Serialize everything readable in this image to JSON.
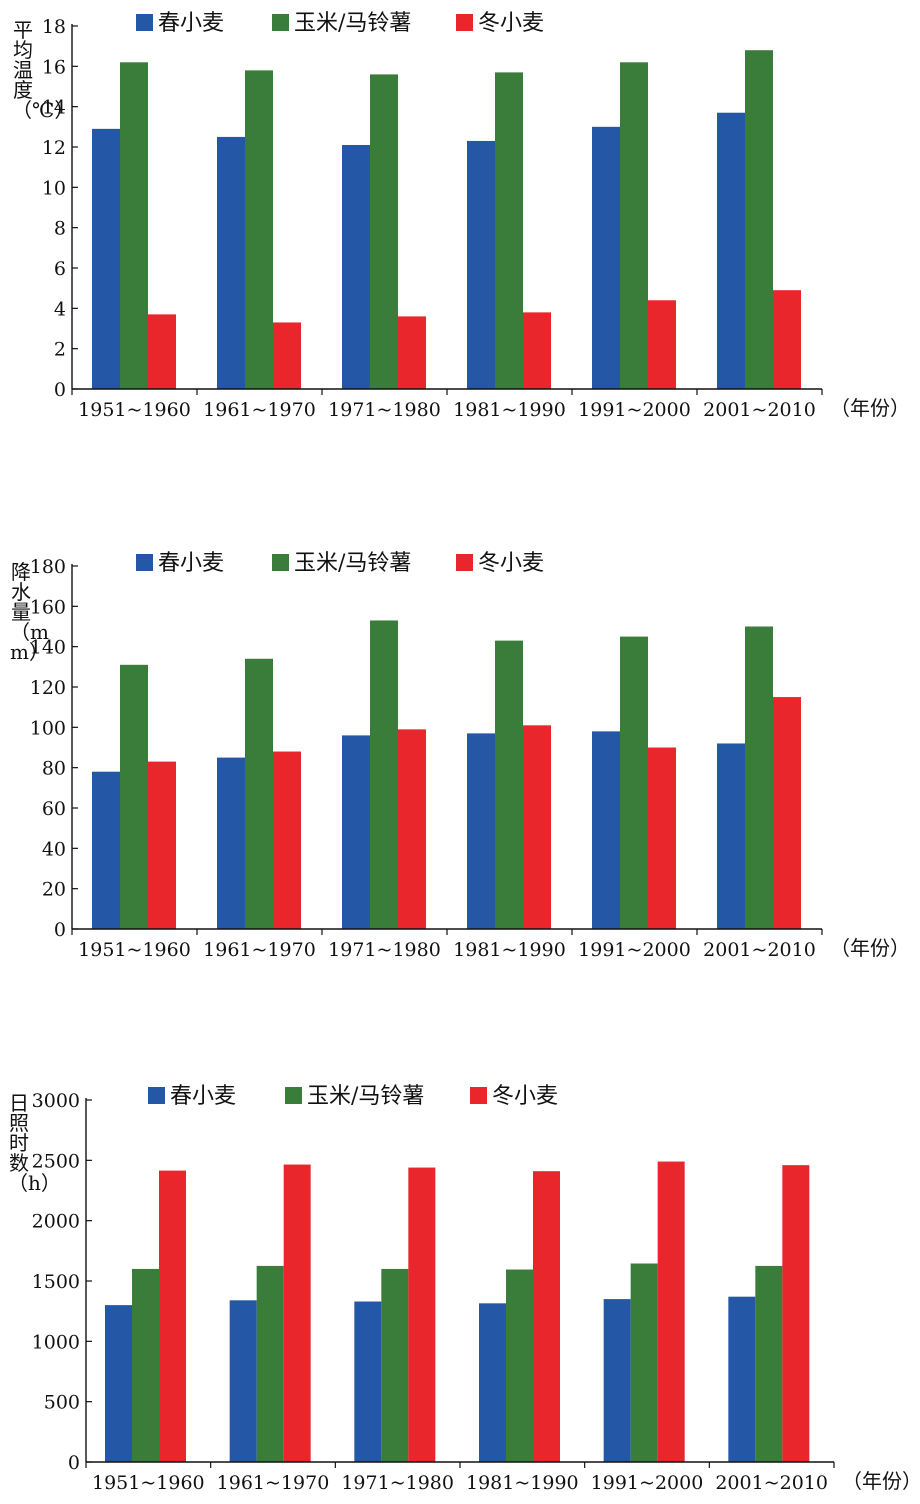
{
  "chart_data": [
    {
      "type": "bar",
      "title": "",
      "ylabel": "平均温度（℃）",
      "xlabel": "（年份）",
      "ylim": [
        0,
        18
      ],
      "yticks": [
        0,
        2,
        4,
        6,
        8,
        10,
        12,
        14,
        16,
        18
      ],
      "categories": [
        "1951~1960",
        "1961~1970",
        "1971~1980",
        "1981~1990",
        "1991~2000",
        "2001~2010"
      ],
      "series": [
        {
          "name": "春小麦",
          "color": "#2457a6",
          "values": [
            12.9,
            12.5,
            12.1,
            12.3,
            13.0,
            13.7
          ]
        },
        {
          "name": "玉米/马铃薯",
          "color": "#3a7d3b",
          "values": [
            16.2,
            15.8,
            15.6,
            15.7,
            16.2,
            16.8
          ]
        },
        {
          "name": "冬小麦",
          "color": "#e8262b",
          "values": [
            3.7,
            3.3,
            3.6,
            3.8,
            4.4,
            4.9
          ]
        }
      ]
    },
    {
      "type": "bar",
      "title": "",
      "ylabel": "降水量（mm）",
      "xlabel": "（年份）",
      "ylim": [
        0,
        180
      ],
      "yticks": [
        0,
        20,
        40,
        60,
        80,
        100,
        120,
        140,
        160,
        180
      ],
      "categories": [
        "1951~1960",
        "1961~1970",
        "1971~1980",
        "1981~1990",
        "1991~2000",
        "2001~2010"
      ],
      "series": [
        {
          "name": "春小麦",
          "color": "#2457a6",
          "values": [
            78,
            85,
            96,
            97,
            98,
            92
          ]
        },
        {
          "name": "玉米/马铃薯",
          "color": "#3a7d3b",
          "values": [
            131,
            134,
            153,
            143,
            145,
            150
          ]
        },
        {
          "name": "冬小麦",
          "color": "#e8262b",
          "values": [
            83,
            88,
            99,
            101,
            90,
            115
          ]
        }
      ]
    },
    {
      "type": "bar",
      "title": "",
      "ylabel": "日照时数（h）",
      "xlabel": "（年份）",
      "ylim": [
        0,
        3000
      ],
      "yticks": [
        0,
        500,
        1000,
        1500,
        2000,
        2500,
        3000
      ],
      "categories": [
        "1951~1960",
        "1961~1970",
        "1971~1980",
        "1981~1990",
        "1991~2000",
        "2001~2010"
      ],
      "series": [
        {
          "name": "春小麦",
          "color": "#2457a6",
          "values": [
            1300,
            1340,
            1330,
            1315,
            1350,
            1370
          ]
        },
        {
          "name": "玉米/马铃薯",
          "color": "#3a7d3b",
          "values": [
            1600,
            1625,
            1600,
            1595,
            1645,
            1625
          ]
        },
        {
          "name": "冬小麦",
          "color": "#e8262b",
          "values": [
            2415,
            2465,
            2440,
            2410,
            2490,
            2460
          ]
        }
      ]
    }
  ]
}
